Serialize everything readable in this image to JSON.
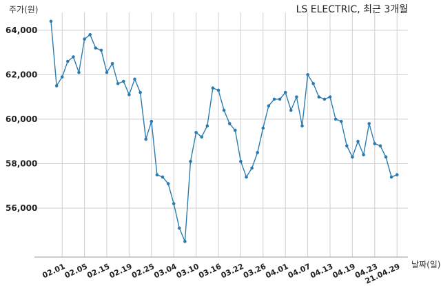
{
  "chart_data": {
    "type": "line",
    "title": "LS ELECTRIC, 최근 3개월",
    "ylabel": "주가(원)",
    "xlabel": "날짜(일)",
    "ylim": [
      53800,
      64800
    ],
    "yticks": [
      56000,
      58000,
      60000,
      62000,
      64000
    ],
    "ytick_labels": [
      "56,000",
      "58,000",
      "60,000",
      "62,000",
      "64,000"
    ],
    "xticks": [
      "02.01",
      "02.05",
      "02.15",
      "02.19",
      "02.25",
      "03.04",
      "03.10",
      "03.16",
      "03.22",
      "03.26",
      "04.01",
      "04.07",
      "04.13",
      "04.19",
      "04.23",
      "21.04.29"
    ],
    "xtick_index": [
      2,
      6,
      10,
      14,
      18,
      22,
      26,
      30,
      34,
      38,
      42,
      46,
      50,
      54,
      58,
      62
    ],
    "grid": true,
    "color": "#2b7bb0",
    "series": [
      {
        "values": [
          64400,
          61500,
          61900,
          62600,
          62800,
          62100,
          63600,
          63800,
          63200,
          63100,
          62100,
          62500,
          61600,
          61700,
          61100,
          61800,
          61200,
          59100,
          59900,
          57500,
          57400,
          57100,
          56200,
          55100,
          54500,
          58100,
          59400,
          59200,
          59700,
          61400,
          61300,
          60400,
          59800,
          59500,
          58100,
          57400,
          57800,
          58500,
          59600,
          60600,
          60900,
          60900,
          61200,
          60400,
          61000,
          59700,
          62000,
          61600,
          61000,
          60900,
          61000,
          60000,
          59900,
          58800,
          58300,
          59000,
          58400,
          59800,
          58900,
          58800,
          58300,
          57400,
          57500
        ]
      }
    ]
  }
}
